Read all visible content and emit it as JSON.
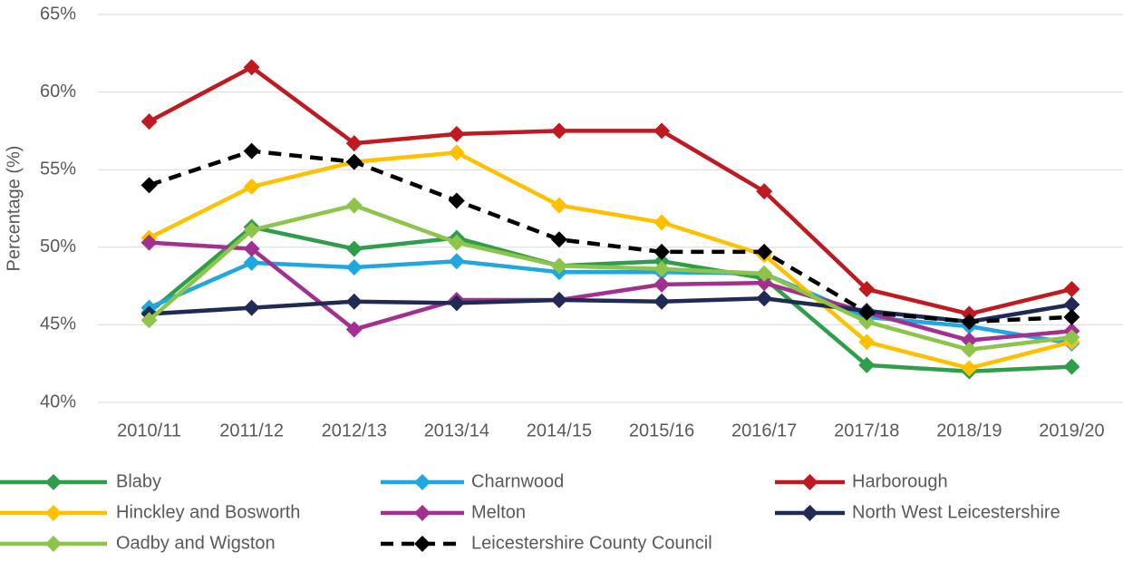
{
  "chart_data": {
    "type": "line",
    "y_label": "Percentage (%)",
    "categories": [
      "2010/11",
      "2011/12",
      "2012/13",
      "2013/14",
      "2014/15",
      "2015/16",
      "2016/17",
      "2017/18",
      "2018/19",
      "2019/20"
    ],
    "ylim": [
      40,
      65
    ],
    "yticks": [
      {
        "value": 40,
        "label": "40%"
      },
      {
        "value": 45,
        "label": "45%"
      },
      {
        "value": 50,
        "label": "50%"
      },
      {
        "value": 55,
        "label": "55%"
      },
      {
        "value": 60,
        "label": "60%"
      },
      {
        "value": 65,
        "label": "65%"
      }
    ],
    "grid": true,
    "legend": "bottom",
    "series": [
      {
        "name": "Blaby",
        "color": "#2e9e4a",
        "values": [
          45.8,
          51.3,
          49.9,
          50.6,
          48.8,
          49.1,
          48.0,
          42.4,
          42.0,
          42.3
        ]
      },
      {
        "name": "Charnwood",
        "color": "#1ea7e1",
        "values": [
          46.1,
          49.0,
          48.7,
          49.1,
          48.4,
          48.4,
          48.3,
          45.5,
          44.9,
          43.8
        ]
      },
      {
        "name": "Harborough",
        "color": "#c0191f",
        "values": [
          58.1,
          61.6,
          56.7,
          57.3,
          57.5,
          57.5,
          53.6,
          47.3,
          45.7,
          47.3
        ]
      },
      {
        "name": "Hinckley and Bosworth",
        "color": "#ffc000",
        "values": [
          50.6,
          53.9,
          55.5,
          56.1,
          52.7,
          51.6,
          49.5,
          43.9,
          42.2,
          43.9
        ]
      },
      {
        "name": "Melton",
        "color": "#a3308f",
        "values": [
          50.3,
          49.9,
          44.7,
          46.6,
          46.6,
          47.6,
          47.7,
          45.8,
          44.0,
          44.6
        ]
      },
      {
        "name": "North West Leicestershire",
        "color": "#1f2a55",
        "values": [
          45.7,
          46.1,
          46.5,
          46.4,
          46.6,
          46.5,
          46.7,
          45.9,
          45.2,
          46.3
        ]
      },
      {
        "name": "Oadby and Wigston",
        "color": "#8dc44a",
        "values": [
          45.3,
          51.1,
          52.7,
          50.3,
          48.8,
          48.6,
          48.3,
          45.2,
          43.4,
          44.2
        ]
      },
      {
        "name": "Leicestershire County Council",
        "color": "#000000",
        "line_style": "dashed",
        "values": [
          54.0,
          56.2,
          55.5,
          53.0,
          50.5,
          49.7,
          49.7,
          45.8,
          45.2,
          45.5
        ]
      }
    ]
  }
}
